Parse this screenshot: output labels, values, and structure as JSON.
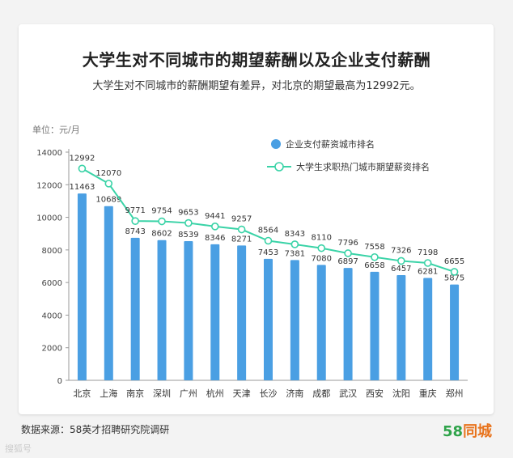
{
  "header": {
    "title": "大学生对不同城市的期望薪酬以及企业支付薪酬",
    "subtitle": "大学生对不同城市的薪酬期望有差异，对北京的期望最高为12992元。"
  },
  "footer": {
    "source": "数据来源：58英才招聘研究院调研",
    "brand_num": "58",
    "brand_word": "同城",
    "watermark": "搜狐号"
  },
  "colors": {
    "bar": "#4a9fe3",
    "line": "#3ad3a7"
  },
  "chart_data": {
    "type": "bar",
    "unit_label": "单位：元/月",
    "categories": [
      "北京",
      "上海",
      "南京",
      "深圳",
      "广州",
      "杭州",
      "天津",
      "长沙",
      "济南",
      "成都",
      "武汉",
      "西安",
      "沈阳",
      "重庆",
      "郑州"
    ],
    "ylim": [
      0,
      14000
    ],
    "yticks": [
      0,
      2000,
      4000,
      6000,
      8000,
      10000,
      12000,
      14000
    ],
    "grid": false,
    "legend_position": "top-right",
    "series": [
      {
        "name": "企业支付薪资城市排名",
        "kind": "bar",
        "values": [
          11463,
          10689,
          8743,
          8602,
          8539,
          8346,
          8271,
          7453,
          7381,
          7080,
          6897,
          6658,
          6457,
          6281,
          5875
        ]
      },
      {
        "name": "大学生求职热门城市期望薪资排名",
        "kind": "line",
        "values": [
          12992,
          12070,
          9771,
          9754,
          9653,
          9441,
          9257,
          8564,
          8343,
          8110,
          7796,
          7558,
          7326,
          7198,
          6655
        ]
      }
    ]
  }
}
